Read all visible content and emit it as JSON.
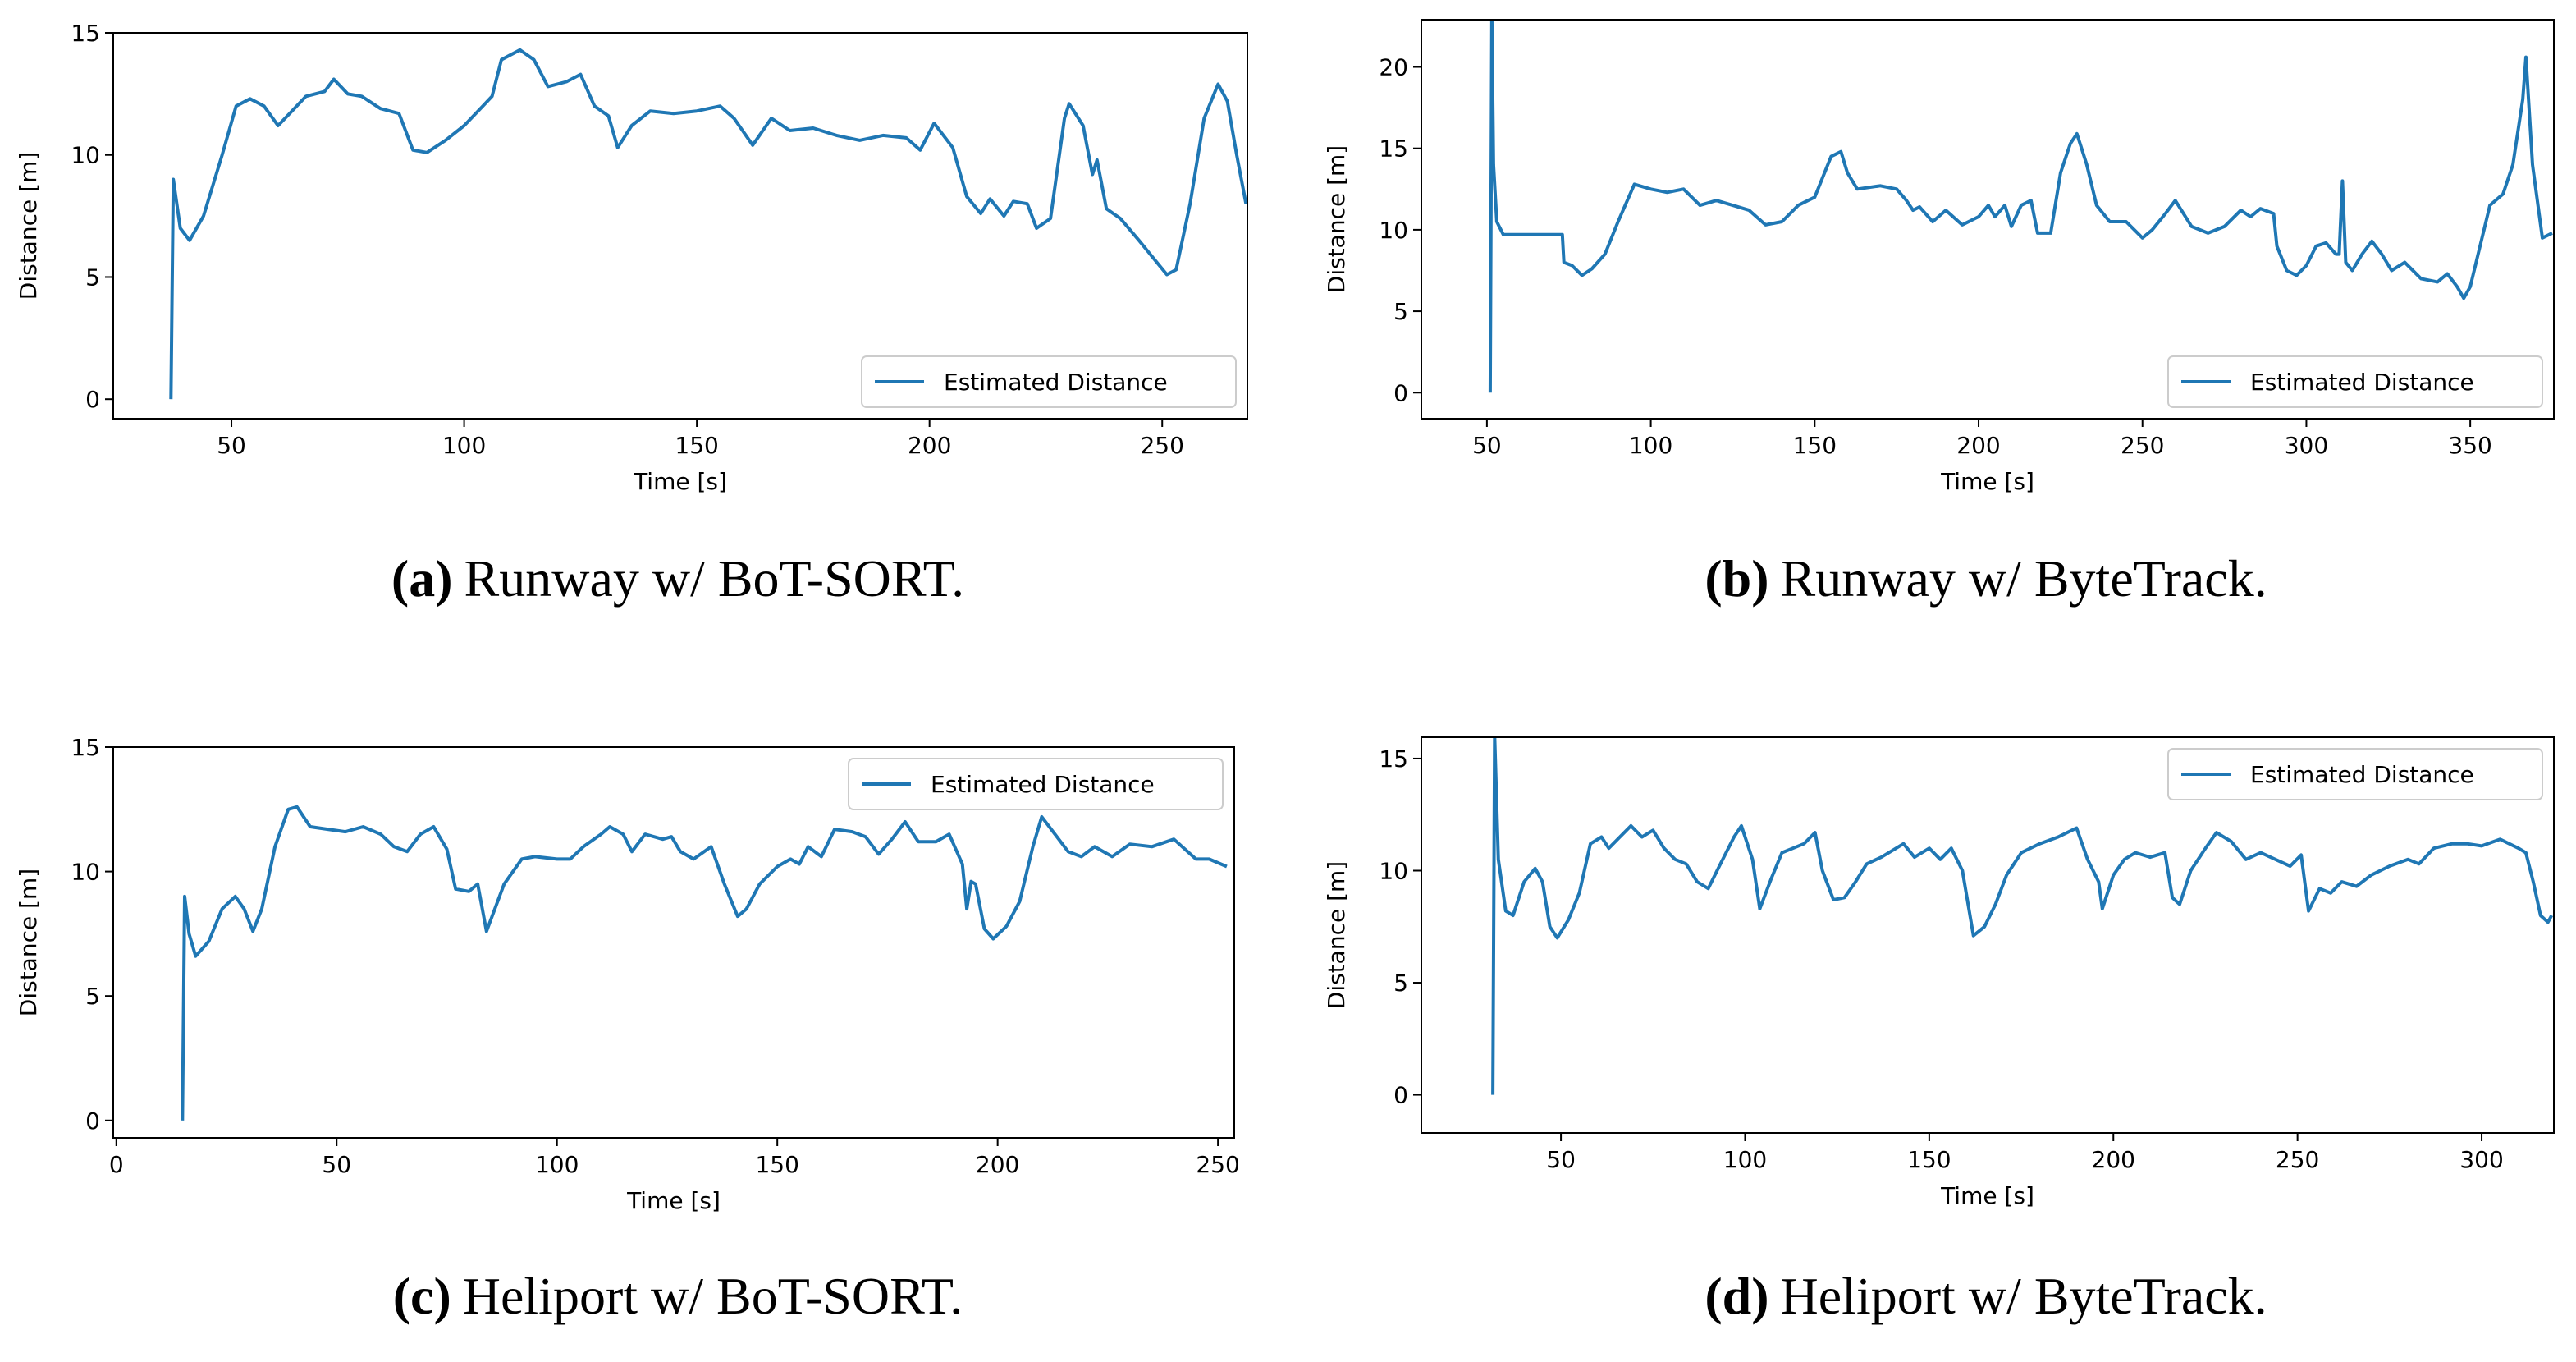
{
  "chart_data": [
    {
      "type": "line",
      "xlabel": "Time [s]",
      "ylabel": "Distance [m]",
      "caption_label": "(a)",
      "caption": "Runway w/ BoT-SORT.",
      "legend": "lower right",
      "xlim": [
        24.6,
        268.3
      ],
      "ylim": [
        -0.8,
        15
      ],
      "xticks": [
        50,
        100,
        150,
        200,
        250
      ],
      "yticks": [
        0,
        5,
        10,
        15
      ],
      "series": [
        {
          "name": "Estimated Distance",
          "color": "#1f77b4",
          "x": [
            37,
            37.5,
            39,
            41,
            44,
            48,
            51,
            54,
            57,
            60,
            63,
            66,
            70,
            72,
            75,
            78,
            82,
            86,
            89,
            92,
            96,
            100,
            104,
            106,
            108,
            112,
            115,
            118,
            122,
            125,
            128,
            131,
            133,
            136,
            140,
            145,
            150,
            155,
            158,
            162,
            166,
            170,
            175,
            180,
            185,
            190,
            195,
            198,
            201,
            205,
            208,
            211,
            213,
            216,
            218,
            221,
            223,
            226,
            229,
            230,
            233,
            235,
            236,
            238,
            241,
            245,
            248,
            251,
            253,
            256,
            259,
            262,
            264,
            266,
            268
          ],
          "values": [
            0,
            9,
            7,
            6.5,
            7.5,
            10,
            12,
            12.3,
            12,
            11.2,
            11.8,
            12.4,
            12.6,
            13.1,
            12.5,
            12.4,
            11.9,
            11.7,
            10.2,
            10.1,
            10.6,
            11.2,
            12,
            12.4,
            13.9,
            14.3,
            13.9,
            12.8,
            13,
            13.3,
            12,
            11.6,
            10.3,
            11.2,
            11.8,
            11.7,
            11.8,
            12,
            11.5,
            10.4,
            11.5,
            11,
            11.1,
            10.8,
            10.6,
            10.8,
            10.7,
            10.2,
            11.3,
            10.3,
            8.3,
            7.6,
            8.2,
            7.5,
            8.1,
            8,
            7,
            7.4,
            11.5,
            12.1,
            11.2,
            9.2,
            9.8,
            7.8,
            7.4,
            6.5,
            5.8,
            5.1,
            5.3,
            8,
            11.5,
            12.9,
            12.2,
            10,
            8
          ]
        }
      ]
    },
    {
      "type": "line",
      "xlabel": "Time [s]",
      "ylabel": "Distance [m]",
      "caption_label": "(b)",
      "caption": "Runway w/ ByteTrack.",
      "legend": "lower right",
      "xlim": [
        30,
        375.5
      ],
      "ylim": [
        -1.6,
        22.9
      ],
      "xticks": [
        50,
        100,
        150,
        200,
        250,
        300,
        350
      ],
      "yticks": [
        0,
        5,
        10,
        15,
        20
      ],
      "series": [
        {
          "name": "Estimated Distance",
          "color": "#1f77b4",
          "x": [
            51,
            51.5,
            52,
            53,
            55,
            73,
            73.5,
            76,
            79,
            82,
            86,
            90,
            95,
            100,
            105,
            110,
            115,
            120,
            125,
            130,
            135,
            140,
            145,
            150,
            155,
            158,
            160,
            163,
            170,
            175,
            178,
            180,
            182,
            186,
            190,
            195,
            200,
            203,
            205,
            208,
            210,
            213,
            216,
            218,
            222,
            225,
            228,
            230,
            233,
            236,
            240,
            245,
            250,
            253,
            257,
            260,
            265,
            270,
            275,
            280,
            283,
            286,
            290,
            291,
            294,
            297,
            300,
            303,
            306,
            309,
            310,
            311,
            312,
            314,
            317,
            320,
            323,
            326,
            330,
            335,
            340,
            343,
            346,
            348,
            350,
            353,
            356,
            360,
            363,
            366,
            367,
            369,
            372,
            375
          ],
          "values": [
            0,
            23,
            14,
            10.5,
            9.7,
            9.7,
            8,
            7.8,
            7.2,
            7.6,
            8.5,
            10.5,
            12.8,
            12.5,
            12.3,
            12.5,
            11.5,
            11.8,
            11.5,
            11.2,
            10.3,
            10.5,
            11.5,
            12,
            14.5,
            14.8,
            13.5,
            12.5,
            12.7,
            12.5,
            11.8,
            11.2,
            11.4,
            10.5,
            11.2,
            10.3,
            10.8,
            11.5,
            10.8,
            11.5,
            10.2,
            11.5,
            11.8,
            9.8,
            9.8,
            13.5,
            15.3,
            15.9,
            14,
            11.5,
            10.5,
            10.5,
            9.5,
            10,
            11,
            11.8,
            10.2,
            9.8,
            10.2,
            11.2,
            10.8,
            11.3,
            11,
            9,
            7.5,
            7.2,
            7.8,
            9,
            9.2,
            8.5,
            8.5,
            13,
            8,
            7.5,
            8.5,
            9.3,
            8.5,
            7.5,
            8,
            7,
            6.8,
            7.3,
            6.5,
            5.8,
            6.5,
            9,
            11.5,
            12.2,
            14,
            18,
            20.6,
            14,
            9.5,
            9.8
          ]
        }
      ]
    },
    {
      "type": "line",
      "xlabel": "Time [s]",
      "ylabel": "Distance [m]",
      "caption_label": "(c)",
      "caption": "Heliport w/ BoT-SORT.",
      "legend": "upper right",
      "xlim": [
        -0.7,
        253.7
      ],
      "ylim": [
        -0.7,
        15
      ],
      "xticks": [
        0,
        50,
        100,
        150,
        200,
        250
      ],
      "yticks": [
        0,
        5,
        10,
        15
      ],
      "series": [
        {
          "name": "Estimated Distance",
          "color": "#1f77b4",
          "x": [
            15,
            15.5,
            16.5,
            18,
            21,
            24,
            27,
            29,
            31,
            33,
            36,
            39,
            41,
            44,
            48,
            52,
            56,
            60,
            63,
            66,
            69,
            72,
            75,
            77,
            80,
            82,
            84,
            88,
            92,
            95,
            100,
            103,
            106,
            110,
            112,
            115,
            117,
            120,
            124,
            126,
            128,
            131,
            135,
            138,
            141,
            143,
            146,
            150,
            153,
            155,
            157,
            160,
            163,
            167,
            170,
            173,
            176,
            179,
            182,
            186,
            189,
            192,
            193,
            194,
            195,
            197,
            199,
            202,
            205,
            208,
            210,
            213,
            216,
            219,
            222,
            226,
            230,
            235,
            240,
            245,
            248,
            252
          ],
          "values": [
            0,
            9,
            7.5,
            6.6,
            7.2,
            8.5,
            9,
            8.5,
            7.6,
            8.5,
            11,
            12.5,
            12.6,
            11.8,
            11.7,
            11.6,
            11.8,
            11.5,
            11,
            10.8,
            11.5,
            11.8,
            10.9,
            9.3,
            9.2,
            9.5,
            7.6,
            9.5,
            10.5,
            10.6,
            10.5,
            10.5,
            11,
            11.5,
            11.8,
            11.5,
            10.8,
            11.5,
            11.3,
            11.4,
            10.8,
            10.5,
            11,
            9.5,
            8.2,
            8.5,
            9.5,
            10.2,
            10.5,
            10.3,
            11,
            10.6,
            11.7,
            11.6,
            11.4,
            10.7,
            11.3,
            12,
            11.2,
            11.2,
            11.5,
            10.3,
            8.5,
            9.6,
            9.5,
            7.7,
            7.3,
            7.8,
            8.8,
            11,
            12.2,
            11.5,
            10.8,
            10.6,
            11,
            10.6,
            11.1,
            11,
            11.3,
            10.5,
            10.5,
            10.2
          ]
        }
      ]
    },
    {
      "type": "line",
      "xlabel": "Time [s]",
      "ylabel": "Distance [m]",
      "caption_label": "(d)",
      "caption": "Heliport w/ ByteTrack.",
      "legend": "upper right",
      "xlim": [
        12.1,
        319.6
      ],
      "ylim": [
        -1.7,
        15.95
      ],
      "xticks": [
        50,
        100,
        150,
        200,
        250,
        300
      ],
      "yticks": [
        0,
        5,
        10,
        15
      ],
      "series": [
        {
          "name": "Estimated Distance",
          "color": "#1f77b4",
          "x": [
            31.5,
            32,
            33,
            35,
            37,
            40,
            43,
            45,
            47,
            49,
            52,
            55,
            58,
            61,
            63,
            66,
            69,
            72,
            75,
            78,
            81,
            84,
            87,
            90,
            93,
            97,
            99,
            102,
            104,
            107,
            110,
            113,
            116,
            119,
            121,
            124,
            127,
            130,
            133,
            137,
            140,
            143,
            146,
            150,
            153,
            156,
            159,
            162,
            165,
            168,
            171,
            175,
            180,
            185,
            190,
            193,
            196,
            197,
            200,
            203,
            206,
            210,
            214,
            216,
            218,
            221,
            225,
            228,
            232,
            236,
            240,
            244,
            248,
            251,
            253,
            256,
            259,
            262,
            266,
            270,
            275,
            280,
            283,
            287,
            292,
            296,
            300,
            305,
            310,
            312,
            314,
            316,
            318,
            319
          ],
          "values": [
            0,
            16,
            10.5,
            8.2,
            8,
            9.5,
            10.1,
            9.5,
            7.5,
            7,
            7.8,
            9,
            11.2,
            11.5,
            11,
            11.5,
            12,
            11.5,
            11.8,
            11,
            10.5,
            10.3,
            9.5,
            9.2,
            10.2,
            11.5,
            12,
            10.5,
            8.3,
            9.6,
            10.8,
            11,
            11.2,
            11.7,
            10,
            8.7,
            8.8,
            9.5,
            10.3,
            10.6,
            10.9,
            11.2,
            10.6,
            11,
            10.5,
            11,
            10,
            7.1,
            7.5,
            8.5,
            9.8,
            10.8,
            11.2,
            11.5,
            11.9,
            10.5,
            9.5,
            8.3,
            9.8,
            10.5,
            10.8,
            10.6,
            10.8,
            8.8,
            8.5,
            10,
            11,
            11.7,
            11.3,
            10.5,
            10.8,
            10.5,
            10.2,
            10.7,
            8.2,
            9.2,
            9,
            9.5,
            9.3,
            9.8,
            10.2,
            10.5,
            10.3,
            11,
            11.2,
            11.2,
            11.1,
            11.4,
            11,
            10.8,
            9.5,
            8,
            7.7,
            8
          ]
        }
      ]
    }
  ]
}
